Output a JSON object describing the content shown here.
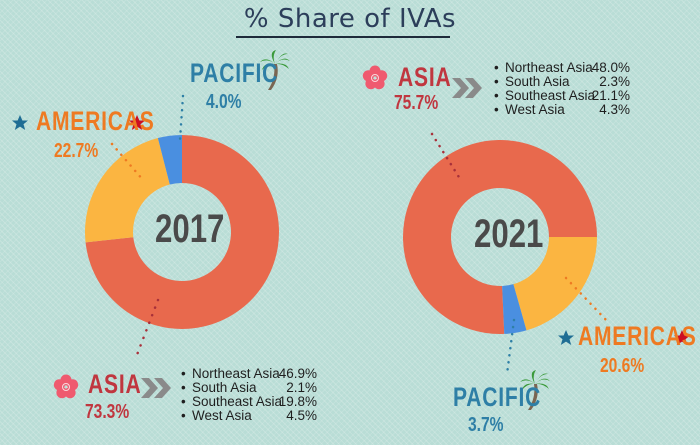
{
  "title": "% Share of IVAs",
  "colors": {
    "asia": "#e8694d",
    "americas": "#fbb541",
    "pacific": "#4a8fe0",
    "asia_text": "#c0363f",
    "americas_text": "#ee7a22",
    "pacific_text": "#2e7fa6",
    "year_text": "#4a4a4a",
    "background": "#b9ddd6"
  },
  "charts": [
    {
      "year": "2017",
      "regions": {
        "asia": {
          "label": "ASIA",
          "value": "73.3%"
        },
        "americas": {
          "label": "AMERICAS",
          "value": "22.7%"
        },
        "pacific": {
          "label": "PACIFIC",
          "value": "4.0%"
        }
      },
      "asia_breakdown": [
        {
          "label": "Northeast Asia",
          "value": "46.9%"
        },
        {
          "label": "South Asia",
          "value": "2.1%"
        },
        {
          "label": "Southeast Asia",
          "value": "19.8%"
        },
        {
          "label": "West Asia",
          "value": "4.5%"
        }
      ]
    },
    {
      "year": "2021",
      "regions": {
        "asia": {
          "label": "ASIA",
          "value": "75.7%"
        },
        "americas": {
          "label": "AMERICAS",
          "value": "20.6%"
        },
        "pacific": {
          "label": "PACIFIC",
          "value": "3.7%"
        }
      },
      "asia_breakdown": [
        {
          "label": "Northeast Asia",
          "value": "48.0%"
        },
        {
          "label": "South Asia",
          "value": "2.3%"
        },
        {
          "label": "Southeast Asia",
          "value": "21.1%"
        },
        {
          "label": "West Asia",
          "value": "4.3%"
        }
      ]
    }
  ],
  "list_bullet": "•",
  "icons": {
    "asia": "flower-icon",
    "americas": "star-icon",
    "pacific": "palm-tree-icon",
    "arrow": "double-chevron-icon"
  },
  "chart_data": [
    {
      "type": "pie",
      "title": "% Share of IVAs — 2017",
      "categories": [
        "Asia",
        "Americas",
        "Pacific"
      ],
      "values": [
        73.3,
        22.7,
        4.0
      ],
      "subcategories": {
        "Asia": {
          "Northeast Asia": 46.9,
          "South Asia": 2.1,
          "Southeast Asia": 19.8,
          "West Asia": 4.5
        }
      },
      "center_label": "2017",
      "style": "donut"
    },
    {
      "type": "pie",
      "title": "% Share of IVAs — 2021",
      "categories": [
        "Asia",
        "Americas",
        "Pacific"
      ],
      "values": [
        75.7,
        20.6,
        3.7
      ],
      "subcategories": {
        "Asia": {
          "Northeast Asia": 48.0,
          "South Asia": 2.3,
          "Southeast Asia": 21.1,
          "West Asia": 4.3
        }
      },
      "center_label": "2021",
      "style": "donut"
    }
  ]
}
